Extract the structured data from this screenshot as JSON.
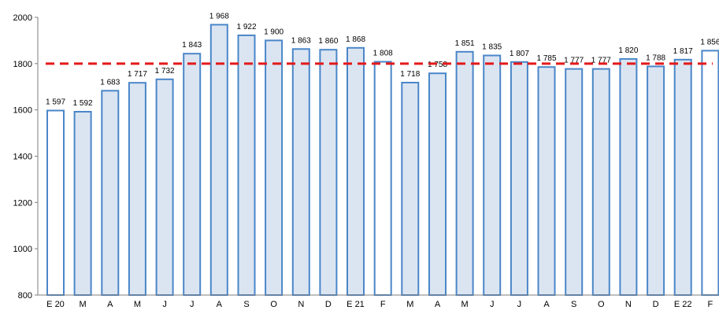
{
  "chart_data": {
    "type": "bar",
    "title": "",
    "xlabel": "",
    "ylabel": "",
    "ylim": [
      800,
      2000
    ],
    "yticks": [
      800,
      1000,
      1200,
      1400,
      1600,
      1800,
      2000
    ],
    "ytick_labels": [
      "800",
      "1000",
      "1200",
      "1400",
      "1600",
      "1800",
      "2000"
    ],
    "categories": [
      "E 20",
      "M",
      "A",
      "M",
      "J",
      "J",
      "A",
      "S",
      "O",
      "N",
      "D",
      "E 21",
      "F",
      "M",
      "A",
      "M",
      "J",
      "J",
      "A",
      "S",
      "O",
      "N",
      "D",
      "E 22",
      "F"
    ],
    "values": [
      1597,
      1592,
      1683,
      1717,
      1732,
      1843,
      1968,
      1922,
      1900,
      1863,
      1860,
      1868,
      1808,
      1718,
      1758,
      1851,
      1835,
      1807,
      1785,
      1777,
      1777,
      1820,
      1788,
      1817,
      1856
    ],
    "value_labels": [
      "1 597",
      "1 592",
      "1 683",
      "1 717",
      "1 732",
      "1 843",
      "1 968",
      "1 922",
      "1 900",
      "1 863",
      "1 860",
      "1 868",
      "1 808",
      "1 718",
      "1 758",
      "1 851",
      "1 835",
      "1 807",
      "1 785",
      "1 777",
      "1 777",
      "1 820",
      "1 788",
      "1 817",
      "1 856"
    ],
    "highlighted": [
      true,
      false,
      false,
      false,
      false,
      false,
      false,
      false,
      false,
      false,
      false,
      false,
      true,
      false,
      false,
      false,
      false,
      false,
      false,
      false,
      false,
      false,
      false,
      false,
      true
    ],
    "reference_line": {
      "value": 1800,
      "style": "dashed",
      "color": "#e3191b"
    },
    "colors": {
      "bar_fill": "#dbe5f2",
      "bar_stroke": "#4a86c8",
      "highlight_fill": "#ffffff",
      "axis": "#7f7f7f",
      "grid": "none"
    },
    "grid": false,
    "legend": "none"
  }
}
